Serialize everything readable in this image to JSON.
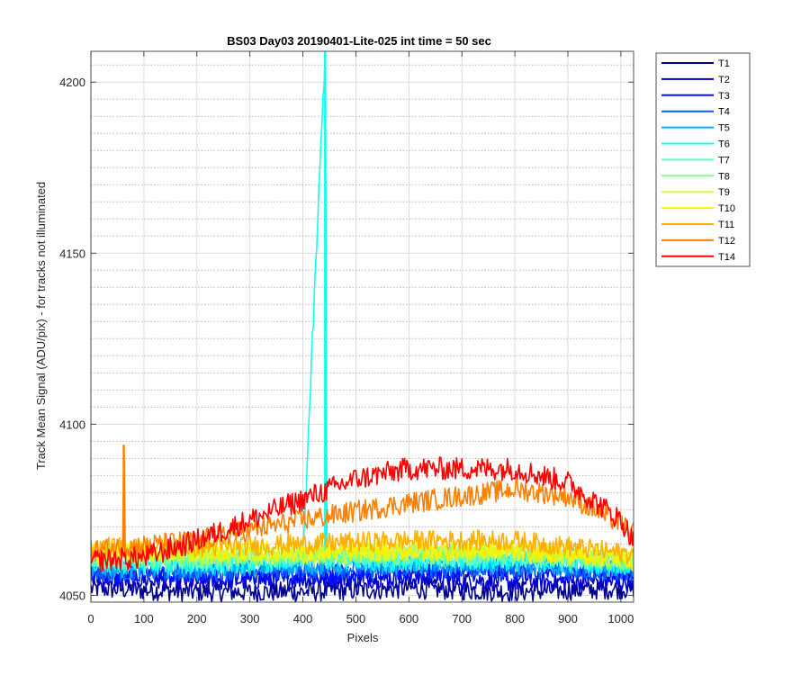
{
  "chart_data": {
    "type": "line",
    "title": "BS03 Day03 20190401-Lite-025 int time = 50 sec",
    "xlabel": "Pixels",
    "ylabel": "Track Mean Signal (ADU/pix) - for tracks not illuminated",
    "xlim": [
      0,
      1024
    ],
    "ylim": [
      4048,
      4209
    ],
    "xticks": [
      0,
      100,
      200,
      300,
      400,
      500,
      600,
      700,
      800,
      900,
      1000
    ],
    "yticks": [
      4050,
      4100,
      4150,
      4200
    ],
    "grid": "on",
    "legend_position": "outside-right",
    "series": [
      {
        "name": "T1",
        "color": "#00008f",
        "points": [
          [
            0,
            4052
          ],
          [
            200,
            4051
          ],
          [
            400,
            4051
          ],
          [
            600,
            4052
          ],
          [
            800,
            4051
          ],
          [
            1024,
            4052
          ]
        ]
      },
      {
        "name": "T2",
        "color": "#0000cc",
        "points": [
          [
            0,
            4055
          ],
          [
            200,
            4054
          ],
          [
            400,
            4055
          ],
          [
            600,
            4055
          ],
          [
            800,
            4054
          ],
          [
            1024,
            4054
          ]
        ]
      },
      {
        "name": "T3",
        "color": "#0010ff",
        "points": [
          [
            0,
            4056
          ],
          [
            200,
            4056
          ],
          [
            400,
            4056
          ],
          [
            600,
            4057
          ],
          [
            800,
            4057
          ],
          [
            1024,
            4056
          ]
        ]
      },
      {
        "name": "T4",
        "color": "#0060ff",
        "points": [
          [
            0,
            4057
          ],
          [
            200,
            4057
          ],
          [
            400,
            4058
          ],
          [
            600,
            4058
          ],
          [
            800,
            4058
          ],
          [
            1024,
            4057
          ]
        ]
      },
      {
        "name": "T5",
        "color": "#00b0ff",
        "points": [
          [
            0,
            4058
          ],
          [
            200,
            4058
          ],
          [
            400,
            4059
          ],
          [
            600,
            4059
          ],
          [
            800,
            4059
          ],
          [
            1024,
            4058
          ]
        ]
      },
      {
        "name": "T6",
        "color": "#10ffef",
        "points": [
          [
            0,
            4059
          ],
          [
            200,
            4059
          ],
          [
            400,
            4060
          ],
          [
            442,
            4209
          ],
          [
            445,
            4060
          ],
          [
            600,
            4060
          ],
          [
            800,
            4060
          ],
          [
            1024,
            4059
          ]
        ]
      },
      {
        "name": "T7",
        "color": "#60ffcf",
        "points": [
          [
            0,
            4060
          ],
          [
            200,
            4060
          ],
          [
            400,
            4061
          ],
          [
            600,
            4061
          ],
          [
            800,
            4061
          ],
          [
            1024,
            4060
          ]
        ]
      },
      {
        "name": "T8",
        "color": "#80ff80",
        "points": [
          [
            0,
            4061
          ],
          [
            200,
            4061
          ],
          [
            400,
            4062
          ],
          [
            600,
            4062
          ],
          [
            800,
            4062
          ],
          [
            1024,
            4060
          ]
        ]
      },
      {
        "name": "T9",
        "color": "#cfff30",
        "points": [
          [
            0,
            4062
          ],
          [
            200,
            4062
          ],
          [
            400,
            4062
          ],
          [
            600,
            4063
          ],
          [
            800,
            4063
          ],
          [
            1024,
            4060
          ]
        ]
      },
      {
        "name": "T10",
        "color": "#ffef00",
        "points": [
          [
            0,
            4063
          ],
          [
            200,
            4063
          ],
          [
            400,
            4063
          ],
          [
            600,
            4063
          ],
          [
            800,
            4063
          ],
          [
            1024,
            4061
          ]
        ]
      },
      {
        "name": "T11",
        "color": "#ffb000",
        "points": [
          [
            0,
            4064
          ],
          [
            200,
            4064
          ],
          [
            400,
            4065
          ],
          [
            600,
            4066
          ],
          [
            800,
            4066
          ],
          [
            1024,
            4062
          ]
        ]
      },
      {
        "name": "T12",
        "color": "#ff8000",
        "points": [
          [
            0,
            4063
          ],
          [
            60,
            4064
          ],
          [
            62,
            4094
          ],
          [
            64,
            4064
          ],
          [
            200,
            4066
          ],
          [
            400,
            4072
          ],
          [
            600,
            4077
          ],
          [
            800,
            4081
          ],
          [
            900,
            4079
          ],
          [
            1000,
            4071
          ],
          [
            1024,
            4068
          ]
        ]
      },
      {
        "name": "T14",
        "color": "#ff0000",
        "points": [
          [
            0,
            4060
          ],
          [
            100,
            4061
          ],
          [
            200,
            4066
          ],
          [
            300,
            4072
          ],
          [
            400,
            4078
          ],
          [
            500,
            4084
          ],
          [
            600,
            4087
          ],
          [
            700,
            4087
          ],
          [
            800,
            4087
          ],
          [
            900,
            4083
          ],
          [
            1000,
            4072
          ],
          [
            1024,
            4066
          ]
        ]
      }
    ]
  }
}
